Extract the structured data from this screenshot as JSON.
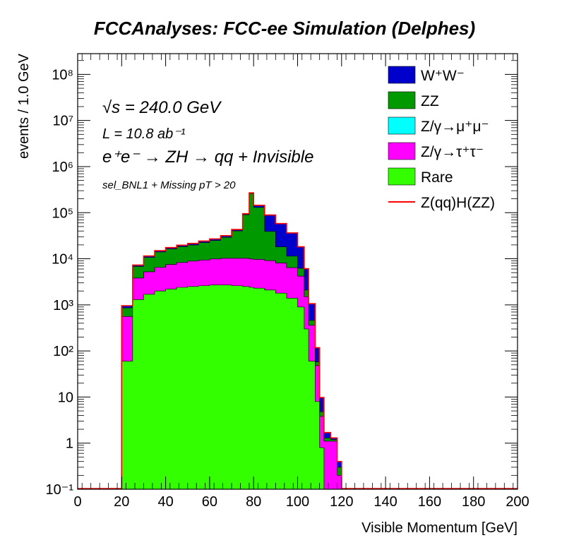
{
  "chart_data": {
    "type": "area",
    "title": "FCCAnalyses: FCC-ee Simulation (Delphes)",
    "xlabel": "Visible Momentum [GeV]",
    "ylabel": "events / 1.0 GeV",
    "xlim": [
      0,
      200
    ],
    "ylim": [
      0.1,
      300000000
    ],
    "yscale": "log",
    "stacked": true,
    "grid": false,
    "legend_position": "top-right",
    "x_ticks": [
      "0",
      "20",
      "40",
      "60",
      "80",
      "100",
      "120",
      "140",
      "160",
      "180",
      "200"
    ],
    "y_ticks": [
      "10⁻¹",
      "1",
      "10",
      "10²",
      "10³",
      "10⁴",
      "10⁵",
      "10⁶",
      "10⁷",
      "10⁸"
    ],
    "annotations": {
      "sqrt_s": "√s = 240.0 GeV",
      "lumi": "L = 10.8 ab⁻¹",
      "process": "e⁺e⁻ → ZH → qq + Invisible",
      "selection": "sel_BNL1 + Missing pT > 20"
    },
    "x": [
      20,
      25,
      30,
      35,
      40,
      45,
      50,
      55,
      60,
      65,
      70,
      75,
      78,
      80,
      85,
      90,
      95,
      100,
      103,
      105,
      108,
      110,
      112,
      115,
      118
    ],
    "series": [
      {
        "name": "Rare",
        "color": "#33ff00",
        "values": [
          60,
          1300,
          1700,
          2000,
          2200,
          2400,
          2500,
          2600,
          2700,
          2700,
          2600,
          2500,
          2400,
          2300,
          2100,
          1800,
          1400,
          900,
          300,
          60,
          8,
          0.8,
          0.1,
          0.1,
          0.1
        ]
      },
      {
        "name": "Z/γ→τ⁺τ⁻",
        "color": "#ff00ff",
        "values": [
          500,
          2500,
          3500,
          4500,
          5300,
          5900,
          6400,
          6800,
          7200,
          7500,
          7600,
          7700,
          7500,
          7400,
          7000,
          6300,
          5000,
          3300,
          1200,
          300,
          40,
          3,
          1,
          1,
          0.1
        ]
      },
      {
        "name": "Z/γ→μ⁺μ⁻",
        "color": "#00ffff",
        "values": [
          0,
          0,
          0,
          0,
          0,
          0,
          0,
          0,
          0,
          0,
          0,
          0,
          0,
          0,
          0,
          0,
          0,
          0,
          0,
          0,
          0,
          0,
          0,
          0,
          0
        ]
      },
      {
        "name": "ZZ",
        "color": "#009900",
        "values": [
          300,
          3000,
          5500,
          7500,
          8800,
          10000,
          11000,
          13000,
          15000,
          19000,
          30000,
          80000,
          250000,
          120000,
          30000,
          10000,
          5000,
          2000,
          600,
          100,
          10,
          1,
          0.2,
          0.1,
          0.1
        ]
      },
      {
        "name": "W⁺W⁻",
        "color": "#0000cc",
        "values": [
          100,
          500,
          800,
          1000,
          1200,
          1400,
          1600,
          1800,
          2100,
          2500,
          3000,
          5000,
          9000,
          15000,
          50000,
          40000,
          25000,
          12000,
          4000,
          600,
          60,
          5,
          0.4,
          0.1,
          0.1
        ]
      }
    ],
    "line_series": {
      "name": "Z(qq)H(ZZ)",
      "color": "#ff0000"
    }
  }
}
